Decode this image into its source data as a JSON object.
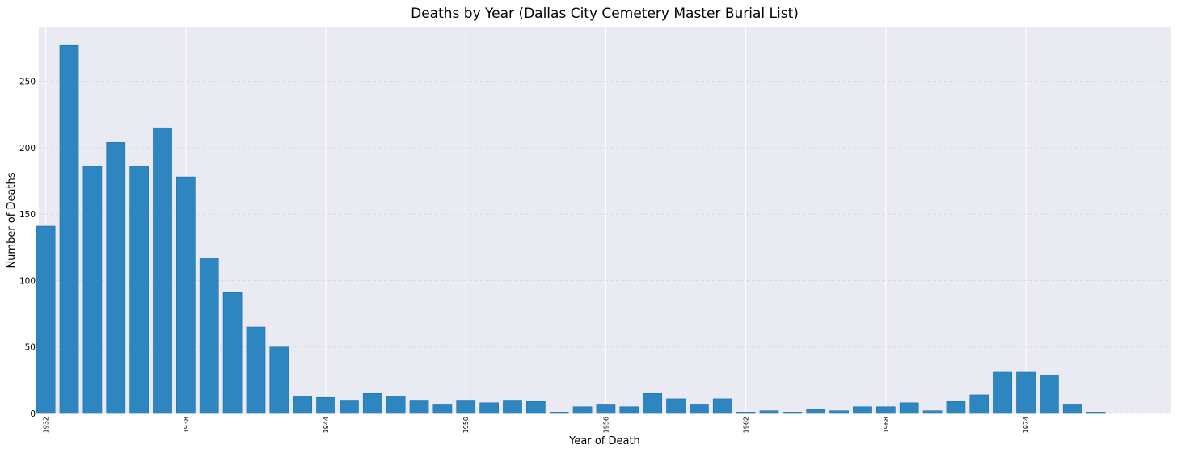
{
  "chart_data": {
    "type": "bar",
    "title": "Deaths by Year (Dallas City Cemetery Master Burial List)",
    "xlabel": "Year of Death",
    "ylabel": "Number of Deaths",
    "x": [
      1932,
      1933,
      1934,
      1935,
      1936,
      1937,
      1938,
      1939,
      1940,
      1941,
      1942,
      1943,
      1944,
      1945,
      1946,
      1947,
      1948,
      1949,
      1950,
      1951,
      1952,
      1953,
      1954,
      1955,
      1956,
      1957,
      1958,
      1959,
      1960,
      1961,
      1962,
      1963,
      1964,
      1965,
      1966,
      1967,
      1968,
      1969,
      1970,
      1971,
      1972,
      1973,
      1974,
      1975,
      1976,
      1977
    ],
    "values": [
      141,
      277,
      186,
      204,
      186,
      215,
      178,
      117,
      91,
      65,
      50,
      13,
      12,
      10,
      15,
      13,
      10,
      7,
      10,
      8,
      10,
      9,
      1,
      5,
      7,
      5,
      15,
      11,
      7,
      11,
      1,
      2,
      1,
      3,
      2,
      5,
      5,
      8,
      2,
      9,
      14,
      31,
      31,
      29,
      7,
      1
    ],
    "xticks": [
      1932,
      1938,
      1944,
      1950,
      1956,
      1962,
      1968,
      1974
    ],
    "yticks": [
      0,
      50,
      100,
      150,
      200,
      250
    ],
    "xlim": [
      1931.7,
      1980.2
    ],
    "ylim": [
      0,
      290.5
    ],
    "grid": true,
    "colors": {
      "bar": "#2e86c1",
      "plot_bg": "#eaeaf2",
      "grid": "#ffffff"
    }
  }
}
